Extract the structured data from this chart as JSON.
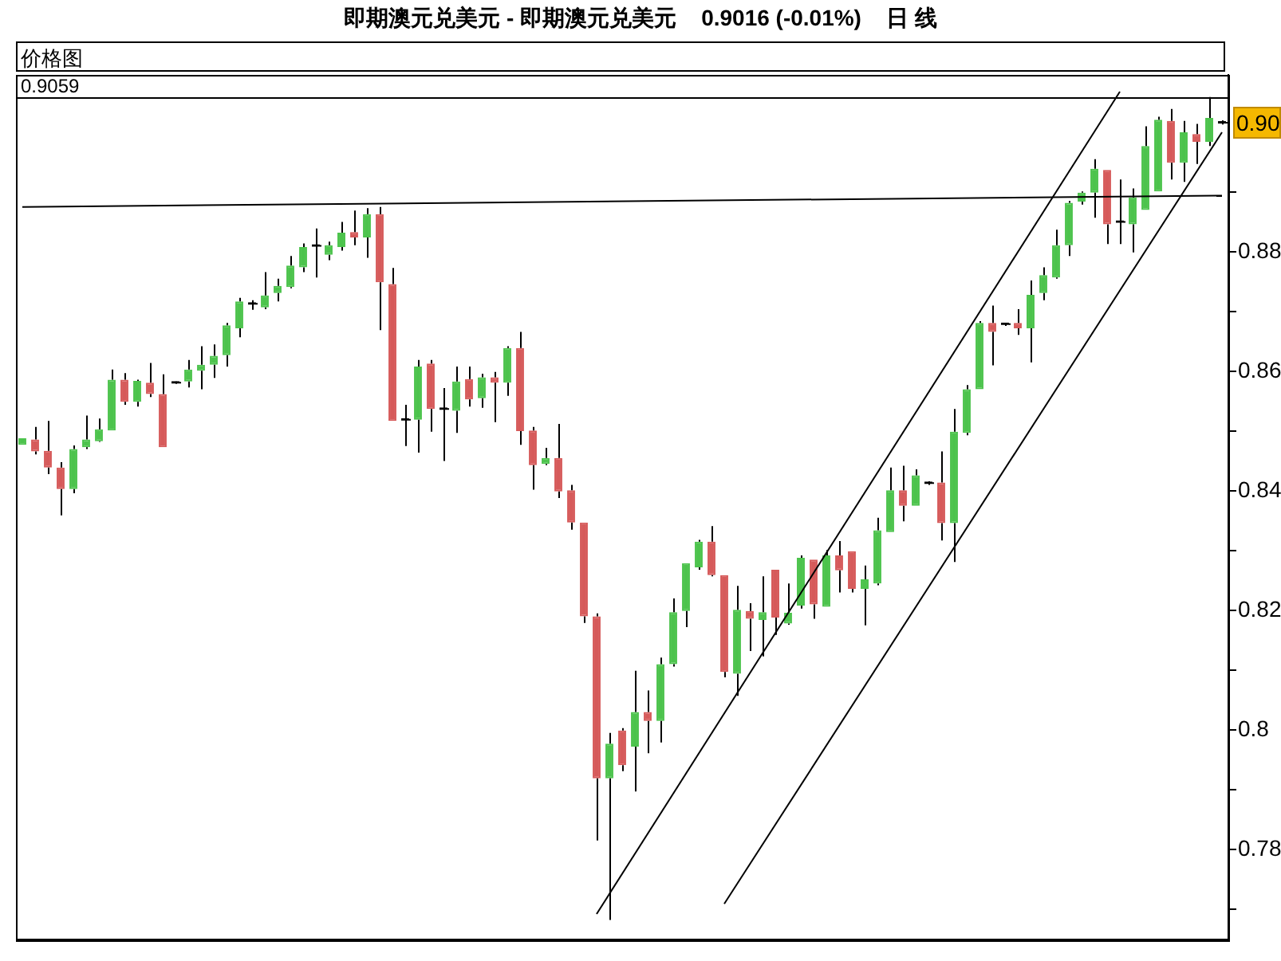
{
  "chart_data": {
    "type": "candlestick",
    "title": "即期澳元兑美元 - 即期澳元兑美元    0.9016 (-0.01%)    日 线",
    "subtitle": "价格图",
    "categories": [
      null,
      null,
      null,
      null,
      null,
      null,
      null,
      null,
      null,
      null,
      null,
      null,
      null,
      null,
      null,
      null,
      null,
      null,
      null,
      null,
      null,
      null,
      null,
      null,
      null,
      null,
      null,
      null,
      null,
      null,
      null,
      null,
      null,
      null,
      null,
      null,
      null,
      null,
      null,
      null,
      null,
      null,
      null,
      null,
      null,
      null,
      null,
      null,
      null,
      null,
      null,
      null,
      null,
      null,
      null,
      null,
      null,
      null,
      null,
      null,
      null,
      null,
      null,
      null,
      null,
      null,
      null,
      null,
      null,
      null,
      null,
      null,
      null,
      null,
      null,
      null,
      null,
      null,
      null,
      null,
      null,
      null,
      null,
      null,
      null,
      null,
      null,
      null,
      null,
      null,
      null,
      null,
      null,
      null,
      null
    ],
    "ohlc": [
      [
        0.8477,
        0.8488,
        0.8477,
        0.8488
      ],
      [
        0.8486,
        0.8507,
        0.8461,
        0.8466
      ],
      [
        0.8467,
        0.8517,
        0.8428,
        0.8439
      ],
      [
        0.8439,
        0.8448,
        0.8359,
        0.8403
      ],
      [
        0.8403,
        0.8476,
        0.8396,
        0.847
      ],
      [
        0.8473,
        0.8526,
        0.847,
        0.8486
      ],
      [
        0.8483,
        0.8521,
        0.8482,
        0.8503
      ],
      [
        0.8501,
        0.8603,
        0.8501,
        0.8586
      ],
      [
        0.8586,
        0.8597,
        0.8544,
        0.8549
      ],
      [
        0.8549,
        0.8586,
        0.8541,
        0.8584
      ],
      [
        0.8581,
        0.8614,
        0.8557,
        0.8562
      ],
      [
        0.8562,
        0.8595,
        0.8473,
        0.8473
      ],
      [
        0.8581,
        0.8583,
        0.8579,
        0.8581
      ],
      [
        0.8583,
        0.8619,
        0.8573,
        0.8603
      ],
      [
        0.8601,
        0.8642,
        0.857,
        0.8611
      ],
      [
        0.8611,
        0.8645,
        0.8589,
        0.8626
      ],
      [
        0.8627,
        0.8681,
        0.8608,
        0.8677
      ],
      [
        0.8672,
        0.8723,
        0.8657,
        0.8717
      ],
      [
        0.8713,
        0.8719,
        0.8703,
        0.8713
      ],
      [
        0.8707,
        0.8766,
        0.8704,
        0.8727
      ],
      [
        0.8731,
        0.8755,
        0.8717,
        0.8743
      ],
      [
        0.8741,
        0.8793,
        0.8739,
        0.8777
      ],
      [
        0.8774,
        0.8814,
        0.8766,
        0.8808
      ],
      [
        0.881,
        0.8839,
        0.8757,
        0.881
      ],
      [
        0.8795,
        0.8817,
        0.8786,
        0.8811
      ],
      [
        0.8808,
        0.885,
        0.8802,
        0.8832
      ],
      [
        0.8833,
        0.8869,
        0.8811,
        0.8824
      ],
      [
        0.8824,
        0.8873,
        0.879,
        0.8863
      ],
      [
        0.8863,
        0.8875,
        0.8669,
        0.8749
      ],
      [
        0.8746,
        0.8773,
        0.8517,
        0.8517
      ],
      [
        0.8519,
        0.8544,
        0.8475,
        0.8519
      ],
      [
        0.8519,
        0.8619,
        0.8464,
        0.8608
      ],
      [
        0.8613,
        0.8619,
        0.8499,
        0.8537
      ],
      [
        0.8537,
        0.8572,
        0.845,
        0.8537
      ],
      [
        0.8534,
        0.8608,
        0.8497,
        0.8583
      ],
      [
        0.8587,
        0.8608,
        0.8541,
        0.8553
      ],
      [
        0.8555,
        0.8596,
        0.8539,
        0.859
      ],
      [
        0.859,
        0.8599,
        0.8515,
        0.8581
      ],
      [
        0.8581,
        0.8642,
        0.8559,
        0.8639
      ],
      [
        0.8639,
        0.8666,
        0.8477,
        0.85
      ],
      [
        0.8501,
        0.8507,
        0.8402,
        0.8443
      ],
      [
        0.8445,
        0.8472,
        0.8443,
        0.8455
      ],
      [
        0.8455,
        0.8512,
        0.8388,
        0.8399
      ],
      [
        0.8401,
        0.841,
        0.8335,
        0.8347
      ],
      [
        0.8347,
        0.8347,
        0.8179,
        0.819
      ],
      [
        0.819,
        0.8195,
        0.7815,
        0.7919
      ],
      [
        0.7919,
        0.7995,
        0.7682,
        0.7977
      ],
      [
        0.7999,
        0.8003,
        0.7931,
        0.7941
      ],
      [
        0.7972,
        0.8099,
        0.7897,
        0.803
      ],
      [
        0.803,
        0.8066,
        0.7961,
        0.8015
      ],
      [
        0.8015,
        0.8121,
        0.7979,
        0.811
      ],
      [
        0.811,
        0.822,
        0.8106,
        0.8197
      ],
      [
        0.8199,
        0.8279,
        0.8172,
        0.8279
      ],
      [
        0.8272,
        0.8318,
        0.8268,
        0.8315
      ],
      [
        0.8315,
        0.8341,
        0.8257,
        0.8259
      ],
      [
        0.8259,
        0.8259,
        0.8088,
        0.8097
      ],
      [
        0.8094,
        0.8241,
        0.8057,
        0.8201
      ],
      [
        0.8199,
        0.8212,
        0.8132,
        0.8186
      ],
      [
        0.8184,
        0.8257,
        0.8123,
        0.8197
      ],
      [
        0.8268,
        0.8268,
        0.8159,
        0.8188
      ],
      [
        0.8178,
        0.8245,
        0.8176,
        0.8196
      ],
      [
        0.8208,
        0.8292,
        0.8203,
        0.8288
      ],
      [
        0.8285,
        0.8285,
        0.8186,
        0.821
      ],
      [
        0.8206,
        0.8301,
        0.8206,
        0.8292
      ],
      [
        0.8292,
        0.8316,
        0.823,
        0.8267
      ],
      [
        0.8299,
        0.8299,
        0.823,
        0.8236
      ],
      [
        0.8236,
        0.8275,
        0.8175,
        0.8252
      ],
      [
        0.8245,
        0.8355,
        0.8242,
        0.8334
      ],
      [
        0.8331,
        0.8439,
        0.8331,
        0.8401
      ],
      [
        0.8401,
        0.8442,
        0.8349,
        0.8375
      ],
      [
        0.8375,
        0.8436,
        0.8375,
        0.8426
      ],
      [
        0.8413,
        0.8416,
        0.841,
        0.8413
      ],
      [
        0.8414,
        0.8466,
        0.8317,
        0.8346
      ],
      [
        0.8346,
        0.8537,
        0.8281,
        0.8499
      ],
      [
        0.8497,
        0.8577,
        0.8493,
        0.857
      ],
      [
        0.857,
        0.8684,
        0.857,
        0.8681
      ],
      [
        0.8681,
        0.871,
        0.861,
        0.8666
      ],
      [
        0.8679,
        0.8681,
        0.8676,
        0.8679
      ],
      [
        0.8681,
        0.8704,
        0.8661,
        0.8672
      ],
      [
        0.8672,
        0.8752,
        0.8615,
        0.8728
      ],
      [
        0.8731,
        0.8774,
        0.8719,
        0.8761
      ],
      [
        0.8757,
        0.8837,
        0.8755,
        0.8811
      ],
      [
        0.8811,
        0.8885,
        0.8793,
        0.8882
      ],
      [
        0.8884,
        0.8901,
        0.8879,
        0.8899
      ],
      [
        0.8899,
        0.8955,
        0.8857,
        0.8939
      ],
      [
        0.8937,
        0.8937,
        0.8813,
        0.8846
      ],
      [
        0.885,
        0.8921,
        0.8813,
        0.885
      ],
      [
        0.8846,
        0.8906,
        0.8799,
        0.8891
      ],
      [
        0.887,
        0.901,
        0.887,
        0.8977
      ],
      [
        0.8901,
        0.9026,
        0.8901,
        0.9021
      ],
      [
        0.9019,
        0.9039,
        0.8921,
        0.8949
      ],
      [
        0.8949,
        0.9019,
        0.8917,
        0.9
      ],
      [
        0.8997,
        0.9014,
        0.8947,
        0.8984
      ],
      [
        0.8984,
        0.9059,
        0.8977,
        0.9024
      ],
      [
        0.9016,
        0.902,
        0.9013,
        0.9016
      ]
    ],
    "colors": [
      "#4cc34c",
      "#d65a5a",
      "#d65a5a",
      "#d65a5a",
      "#4cc34c",
      "#4cc34c",
      "#4cc34c",
      "#4cc34c",
      "#d65a5a",
      "#4cc34c",
      "#d65a5a",
      "#d65a5a",
      "#000000",
      "#4cc34c",
      "#4cc34c",
      "#4cc34c",
      "#4cc34c",
      "#4cc34c",
      "#000000",
      "#4cc34c",
      "#4cc34c",
      "#4cc34c",
      "#4cc34c",
      "#000000",
      "#4cc34c",
      "#4cc34c",
      "#d65a5a",
      "#4cc34c",
      "#d65a5a",
      "#d65a5a",
      "#000000",
      "#4cc34c",
      "#d65a5a",
      "#000000",
      "#4cc34c",
      "#d65a5a",
      "#4cc34c",
      "#d65a5a",
      "#4cc34c",
      "#d65a5a",
      "#d65a5a",
      "#4cc34c",
      "#d65a5a",
      "#d65a5a",
      "#d65a5a",
      "#d65a5a",
      "#4cc34c",
      "#d65a5a",
      "#4cc34c",
      "#d65a5a",
      "#4cc34c",
      "#4cc34c",
      "#4cc34c",
      "#4cc34c",
      "#d65a5a",
      "#d65a5a",
      "#4cc34c",
      "#d65a5a",
      "#4cc34c",
      "#d65a5a",
      "#4cc34c",
      "#4cc34c",
      "#d65a5a",
      "#4cc34c",
      "#d65a5a",
      "#d65a5a",
      "#4cc34c",
      "#4cc34c",
      "#4cc34c",
      "#d65a5a",
      "#4cc34c",
      "#000000",
      "#d65a5a",
      "#4cc34c",
      "#4cc34c",
      "#4cc34c",
      "#d65a5a",
      "#000000",
      "#d65a5a",
      "#4cc34c",
      "#4cc34c",
      "#4cc34c",
      "#4cc34c",
      "#4cc34c",
      "#4cc34c",
      "#d65a5a",
      "#000000",
      "#4cc34c",
      "#4cc34c",
      "#4cc34c",
      "#d65a5a",
      "#4cc34c",
      "#d65a5a",
      "#4cc34c",
      "#000000"
    ],
    "series": [
      {
        "type": "line",
        "color": "#000000",
        "values": [
          0.8875,
          null,
          null,
          null,
          null,
          null,
          null,
          null,
          null,
          null,
          null,
          null,
          null,
          null,
          null,
          null,
          null,
          null,
          null,
          null,
          null,
          null,
          null,
          null,
          null,
          null,
          null,
          null,
          null,
          null,
          null,
          null,
          null,
          null,
          null,
          null,
          null,
          null,
          null,
          null,
          null,
          null,
          null,
          null,
          null,
          null,
          null,
          null,
          null,
          null,
          null,
          null,
          null,
          null,
          null,
          null,
          null,
          null,
          null,
          null,
          null,
          null,
          null,
          null,
          null,
          null,
          null,
          null,
          null,
          null,
          null,
          null,
          null,
          null,
          null,
          null,
          null,
          null,
          null,
          null,
          null,
          null,
          null,
          null,
          null,
          null,
          null,
          null,
          null,
          null,
          null,
          null,
          null,
          null,
          0.8894
        ]
      },
      {
        "type": "line",
        "color": "#000000",
        "values": [
          null,
          null,
          null,
          null,
          null,
          null,
          null,
          null,
          null,
          null,
          null,
          null,
          null,
          null,
          null,
          null,
          null,
          null,
          null,
          null,
          null,
          null,
          null,
          null,
          null,
          null,
          null,
          null,
          null,
          null,
          null,
          null,
          null,
          null,
          null,
          null,
          null,
          null,
          null,
          null,
          null,
          null,
          null,
          null,
          null,
          0.7692,
          null,
          null,
          null,
          null,
          null,
          null,
          null,
          null,
          null,
          null,
          null,
          null,
          null,
          null,
          null,
          null,
          null,
          null,
          null,
          null,
          null,
          null,
          null,
          null,
          null,
          null,
          null,
          null,
          null,
          null,
          null,
          null,
          null,
          null,
          null,
          null,
          null,
          null,
          null,
          null,
          0.9068,
          null,
          null,
          null,
          null,
          null,
          null,
          null,
          null
        ]
      },
      {
        "type": "line",
        "color": "#000000",
        "values": [
          null,
          null,
          null,
          null,
          null,
          null,
          null,
          null,
          null,
          null,
          null,
          null,
          null,
          null,
          null,
          null,
          null,
          null,
          null,
          null,
          null,
          null,
          null,
          null,
          null,
          null,
          null,
          null,
          null,
          null,
          null,
          null,
          null,
          null,
          null,
          null,
          null,
          null,
          null,
          null,
          null,
          null,
          null,
          null,
          null,
          null,
          null,
          null,
          null,
          null,
          null,
          null,
          null,
          null,
          null,
          0.7709,
          null,
          null,
          null,
          null,
          null,
          null,
          null,
          null,
          null,
          null,
          null,
          null,
          null,
          null,
          null,
          null,
          null,
          null,
          null,
          null,
          null,
          null,
          null,
          null,
          null,
          null,
          null,
          null,
          null,
          null,
          null,
          null,
          null,
          null,
          null,
          null,
          null,
          null,
          0.9
        ]
      }
    ],
    "ylim": [
      0.7648,
      0.9096
    ],
    "yticks": [
      {
        "value": 0.77,
        "label": null
      },
      0.78,
      {
        "value": 0.79,
        "label": null
      },
      0.8,
      {
        "value": 0.81,
        "label": null
      },
      0.82,
      {
        "value": 0.83,
        "label": null
      },
      0.84,
      {
        "value": 0.85,
        "label": null
      },
      0.86,
      {
        "value": 0.87,
        "label": null
      },
      0.88,
      {
        "value": 0.89,
        "label": null
      }
    ],
    "ref_lines": [
      {
        "axis": "y",
        "value": 0.9059,
        "label": "0.9059",
        "color": "#000000"
      }
    ],
    "annotations": [
      {
        "text": "0.90",
        "y": 0.9016
      }
    ]
  }
}
